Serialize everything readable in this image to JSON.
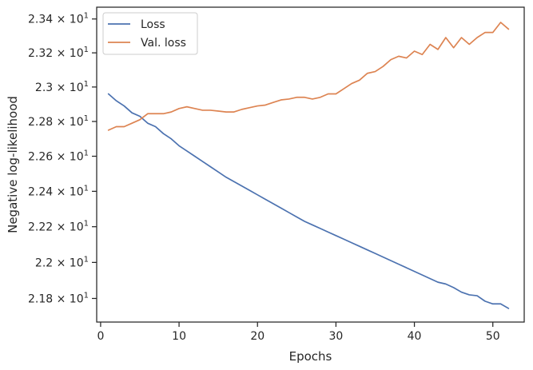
{
  "chart_data": {
    "type": "line",
    "title": "",
    "xlabel": "Epochs",
    "ylabel": "Negative log-likelihood",
    "xlim": [
      -0.5,
      54.0
    ],
    "ylim": [
      21.67,
      23.47
    ],
    "yscale": "log",
    "grid": false,
    "legend_position": "top-left",
    "x_ticks": [
      0,
      10,
      20,
      30,
      40,
      50
    ],
    "x_tick_labels": [
      "0",
      "10",
      "20",
      "30",
      "40",
      "50"
    ],
    "y_ticks": [
      21.8,
      22.0,
      22.2,
      22.4,
      22.6,
      22.8,
      23.0,
      23.2,
      23.4
    ],
    "y_tick_labels": [
      {
        "mantissa": "2.18",
        "exponent": "1"
      },
      {
        "mantissa": "2.2",
        "exponent": "1"
      },
      {
        "mantissa": "2.22",
        "exponent": "1"
      },
      {
        "mantissa": "2.24",
        "exponent": "1"
      },
      {
        "mantissa": "2.26",
        "exponent": "1"
      },
      {
        "mantissa": "2.28",
        "exponent": "1"
      },
      {
        "mantissa": "2.3",
        "exponent": "1"
      },
      {
        "mantissa": "2.32",
        "exponent": "1"
      },
      {
        "mantissa": "2.34",
        "exponent": "1"
      }
    ],
    "x": [
      1,
      2,
      3,
      4,
      5,
      6,
      7,
      8,
      9,
      10,
      11,
      12,
      13,
      14,
      15,
      16,
      17,
      18,
      19,
      20,
      21,
      22,
      23,
      24,
      25,
      26,
      27,
      28,
      29,
      30,
      31,
      32,
      33,
      34,
      35,
      36,
      37,
      38,
      39,
      40,
      41,
      42,
      43,
      44,
      45,
      46,
      47,
      48,
      49,
      50,
      51,
      52
    ],
    "series": [
      {
        "name": "Loss",
        "color": "#4c72b0",
        "values": [
          22.96,
          22.92,
          22.89,
          22.85,
          22.83,
          22.79,
          22.77,
          22.73,
          22.7,
          22.66,
          22.63,
          22.6,
          22.57,
          22.54,
          22.51,
          22.48,
          22.455,
          22.43,
          22.405,
          22.38,
          22.355,
          22.33,
          22.305,
          22.28,
          22.255,
          22.23,
          22.21,
          22.19,
          22.17,
          22.15,
          22.13,
          22.11,
          22.09,
          22.07,
          22.05,
          22.03,
          22.01,
          21.99,
          21.97,
          21.95,
          21.93,
          21.91,
          21.89,
          21.88,
          21.86,
          21.835,
          21.82,
          21.815,
          21.785,
          21.77,
          21.77,
          21.745
        ]
      },
      {
        "name": "Val. loss",
        "color": "#dd8452",
        "values": [
          22.75,
          22.77,
          22.77,
          22.79,
          22.81,
          22.845,
          22.845,
          22.845,
          22.855,
          22.875,
          22.885,
          22.875,
          22.865,
          22.865,
          22.86,
          22.855,
          22.855,
          22.87,
          22.88,
          22.89,
          22.895,
          22.91,
          22.925,
          22.93,
          22.94,
          22.94,
          22.93,
          22.94,
          22.96,
          22.96,
          22.99,
          23.02,
          23.04,
          23.08,
          23.09,
          23.12,
          23.16,
          23.18,
          23.17,
          23.21,
          23.19,
          23.25,
          23.22,
          23.29,
          23.23,
          23.29,
          23.25,
          23.29,
          23.32,
          23.32,
          23.38,
          23.34
        ]
      }
    ]
  }
}
